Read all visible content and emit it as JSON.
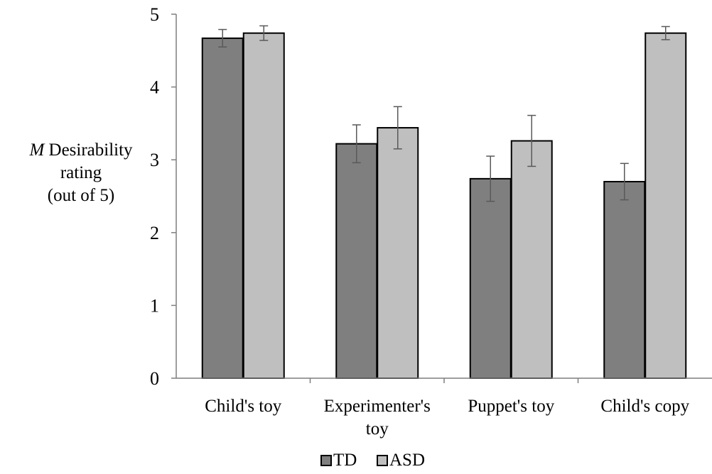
{
  "chart_data": {
    "type": "bar",
    "title": "",
    "xlabel": "",
    "ylabel_parts": [
      "M",
      "Desirability",
      "rating",
      "(out of 5)"
    ],
    "categories": [
      "Child's toy",
      "Experimenter's toy",
      "Puppet's toy",
      "Child's copy"
    ],
    "category_label_lines": [
      [
        "Child's toy"
      ],
      [
        "Experimenter's",
        "toy"
      ],
      [
        "Puppet's toy"
      ],
      [
        "Child's copy"
      ]
    ],
    "series": [
      {
        "name": "TD",
        "color": "#7f7f7f",
        "values": [
          4.67,
          3.22,
          2.74,
          2.7
        ],
        "errors": [
          0.12,
          0.26,
          0.31,
          0.25
        ]
      },
      {
        "name": "ASD",
        "color": "#bfbfbf",
        "values": [
          4.74,
          3.44,
          3.26,
          4.74
        ],
        "errors": [
          0.1,
          0.29,
          0.35,
          0.09
        ]
      }
    ],
    "ylim": [
      0,
      5
    ],
    "yticks": [
      "0",
      "1",
      "2",
      "3",
      "4",
      "5"
    ],
    "grid": false,
    "legend_position": "bottom"
  }
}
